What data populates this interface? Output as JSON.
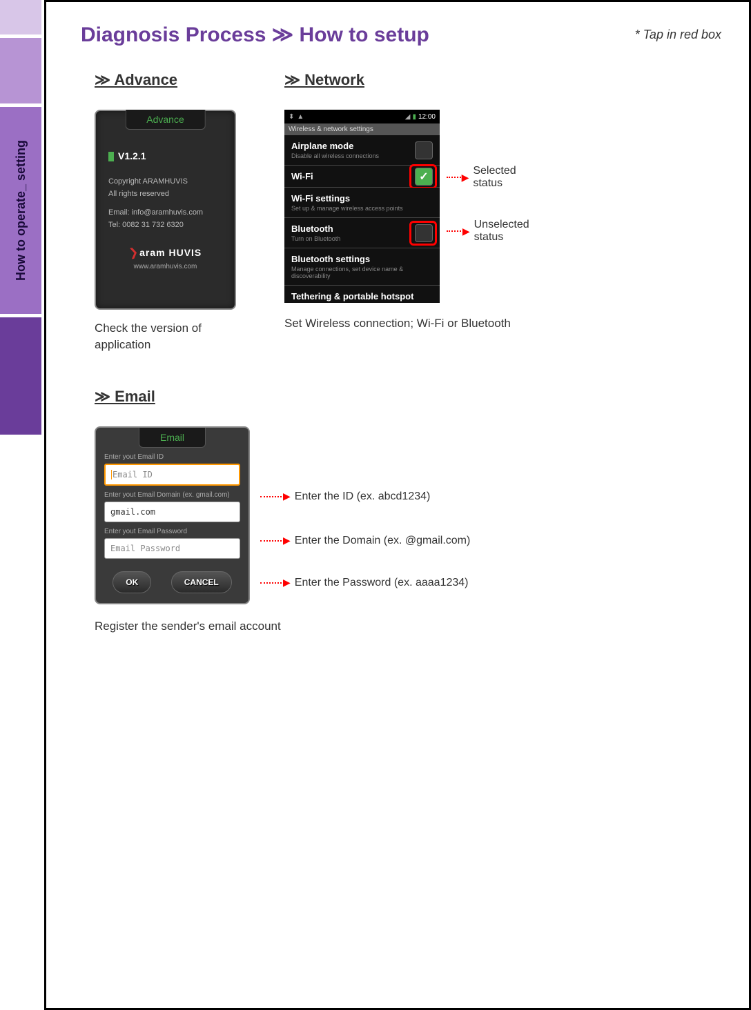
{
  "sidebar": {
    "label": "How to operate_ setting",
    "colors": {
      "light": "#d8c6e8",
      "mid": "#b794d4",
      "main": "#9b6fc4",
      "dark": "#6a3d9a"
    }
  },
  "header": {
    "title": "Diagnosis Process ≫ How to setup",
    "note": "* Tap in red box"
  },
  "advance": {
    "heading": "≫ Advance",
    "tab": "Advance",
    "version": "V1.2.1",
    "copyright1": "Copyright ARAMHUVIS",
    "copyright2": "All rights reserved",
    "email": "Email: info@aramhuvis.com",
    "tel": "Tel: 0082 31 732 6320",
    "logo_text": "aram HUVIS",
    "logo_sub": "www.aramhuvis.com",
    "caption": "Check the version of application"
  },
  "network": {
    "heading": "≫ Network",
    "settings_header": "Wireless & network settings",
    "items": [
      {
        "title": "Airplane mode",
        "sub": "Disable all wireless connections",
        "checkbox": true,
        "checked": false,
        "redbox": false
      },
      {
        "title": "Wi-Fi",
        "sub": "",
        "checkbox": true,
        "checked": true,
        "redbox": true
      },
      {
        "title": "Wi-Fi settings",
        "sub": "Set up & manage wireless access points",
        "checkbox": false,
        "checked": false,
        "redbox": false
      },
      {
        "title": "Bluetooth",
        "sub": "Turn on Bluetooth",
        "checkbox": true,
        "checked": false,
        "redbox": true
      },
      {
        "title": "Bluetooth settings",
        "sub": "Manage connections, set device name & discoverability",
        "checkbox": false,
        "checked": false,
        "redbox": false
      },
      {
        "title": "Tethering & portable hotspot",
        "sub": "",
        "checkbox": false,
        "checked": false,
        "redbox": false
      }
    ],
    "annot_selected": "Selected status",
    "annot_unselected": "Unselected status",
    "caption": "Set Wireless connection; Wi-Fi or Bluetooth",
    "status_time": "12:00"
  },
  "email": {
    "heading": "≫ Email",
    "tab": "Email",
    "label_id": "Enter yout Email ID",
    "placeholder_id": "Email ID",
    "label_domain": "Enter yout Email Domain (ex. gmail.com)",
    "value_domain": "gmail.com",
    "label_pw": "Enter yout Email Password",
    "placeholder_pw": "Email Password",
    "btn_ok": "OK",
    "btn_cancel": "CANCEL",
    "annot_id": "Enter the ID (ex. abcd1234)",
    "annot_domain": "Enter the Domain (ex. @gmail.com)",
    "annot_pw": "Enter the Password (ex. aaaa1234)",
    "caption": "Register the sender's email account"
  }
}
